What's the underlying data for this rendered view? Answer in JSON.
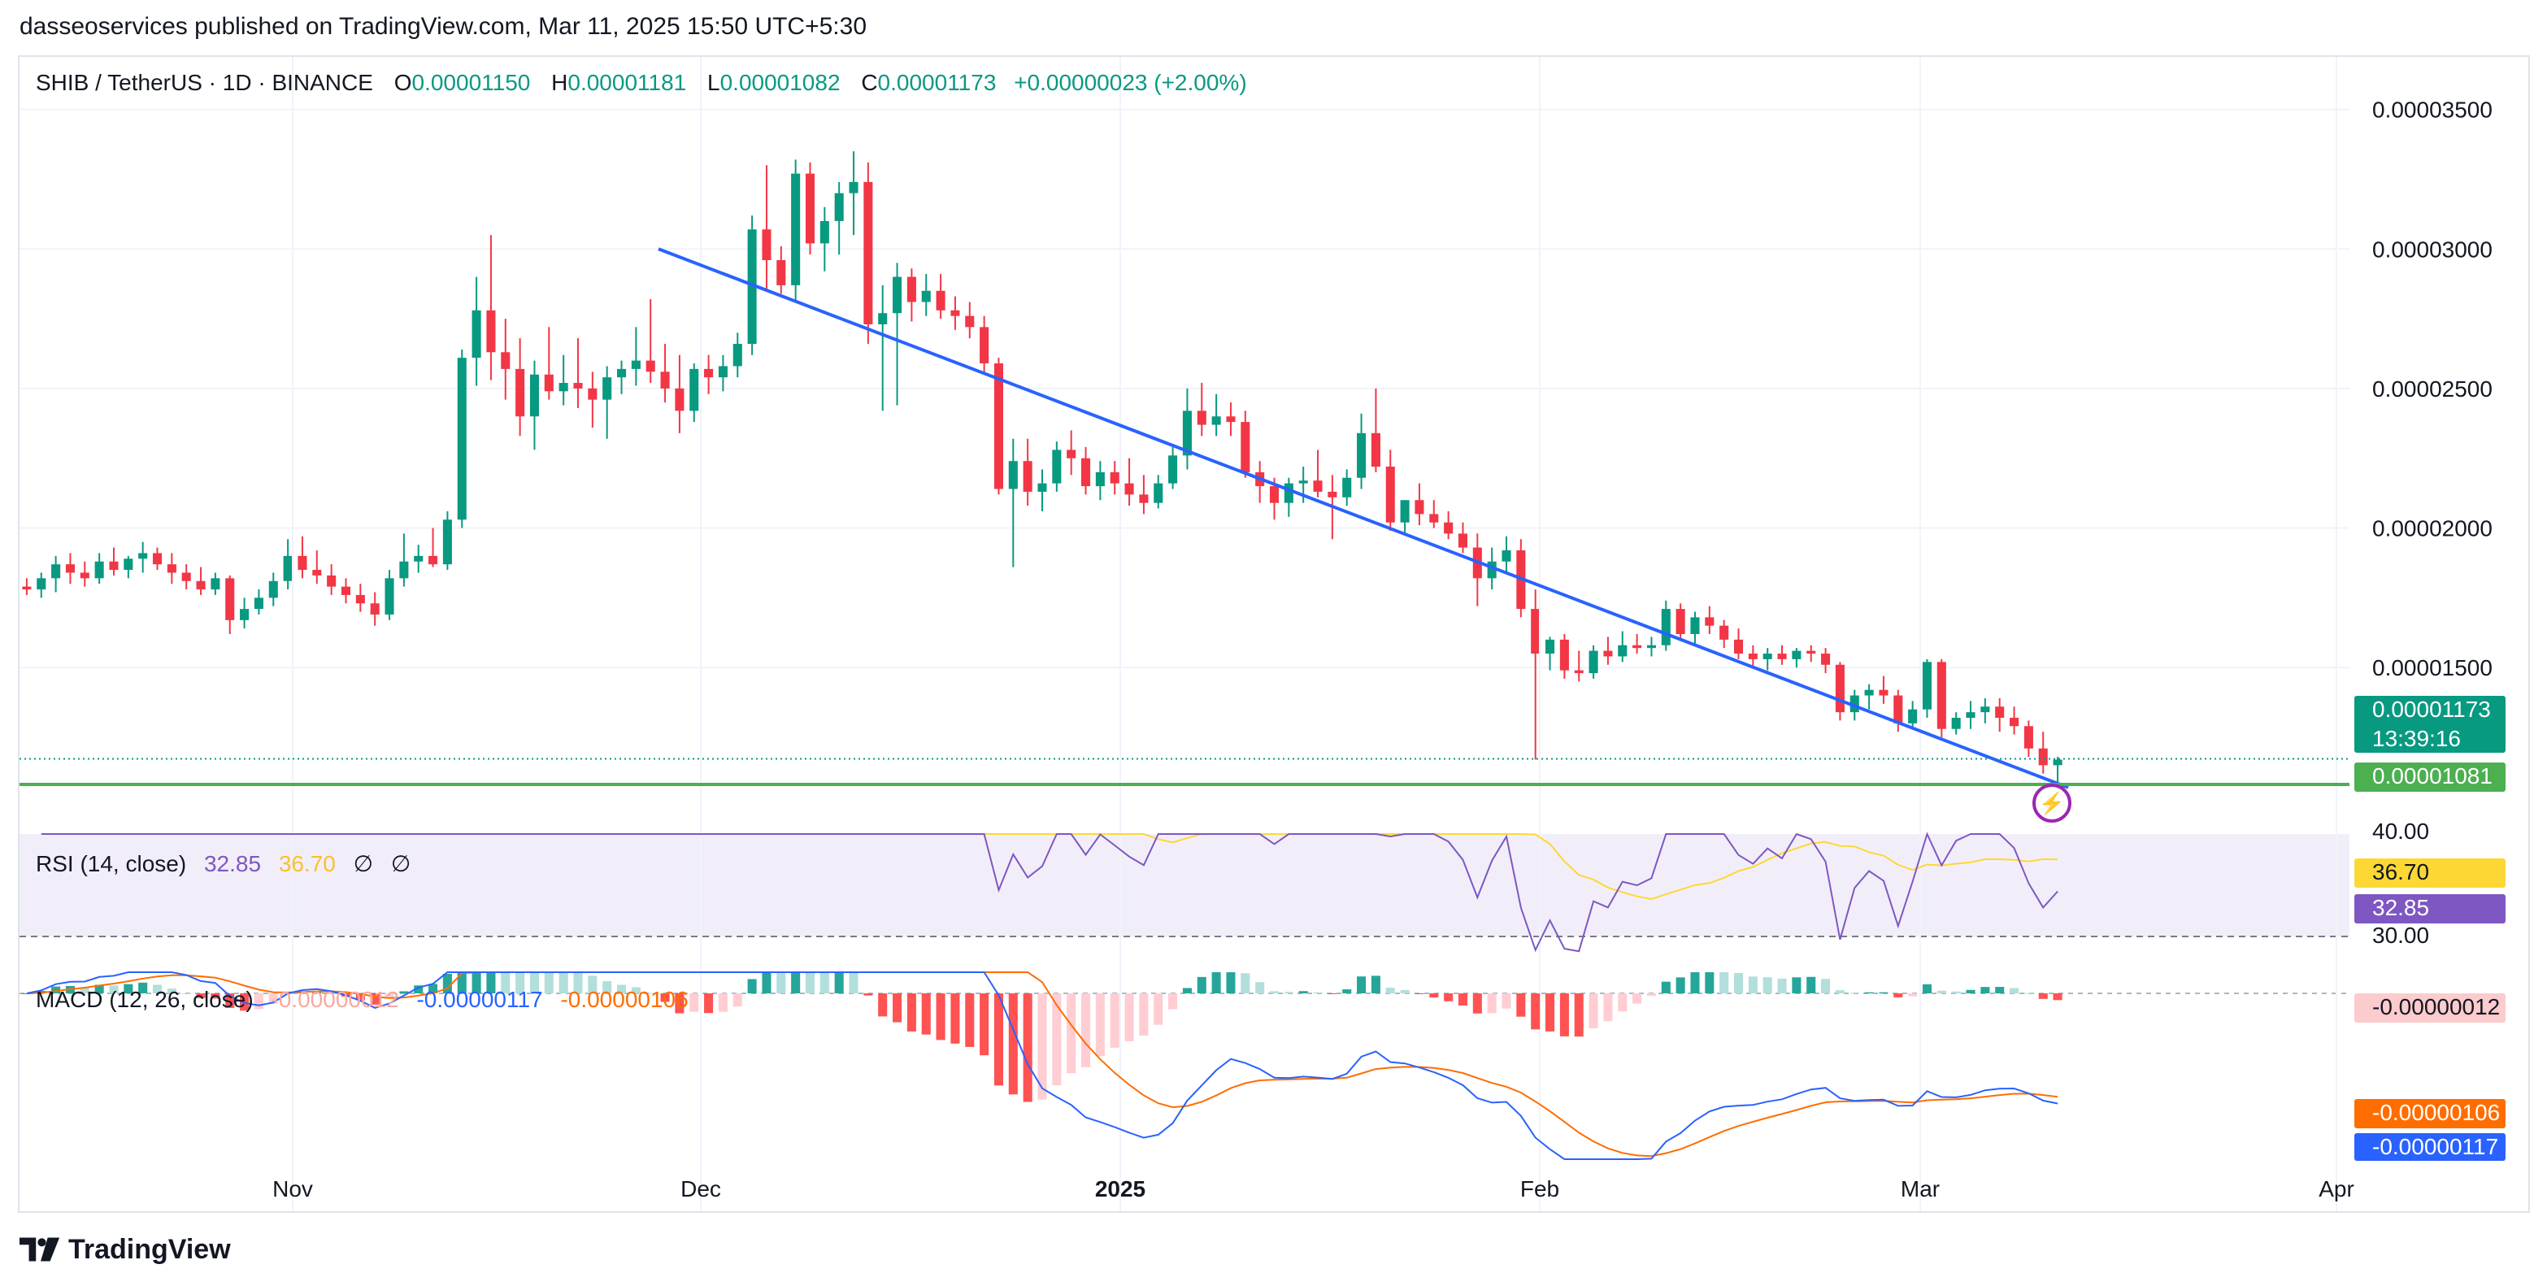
{
  "publisher": "dasseoservices published on TradingView.com, Mar 11, 2025 15:50 UTC+5:30",
  "legend": {
    "symbol": "SHIB / TetherUS · 1D · BINANCE",
    "o_label": "O",
    "o": "0.00001150",
    "h_label": "H",
    "h": "0.00001181",
    "l_label": "L",
    "l": "0.00001082",
    "c_label": "C",
    "c": "0.00001173",
    "change": "+0.00000023 (+2.00%)"
  },
  "rsi_legend": {
    "name": "RSI (14, close)",
    "v1": "32.85",
    "v2": "36.70",
    "v3": "∅",
    "v4": "∅"
  },
  "macd_legend": {
    "name": "MACD (12, 26, close)",
    "v1": "-0.00000012",
    "v2": "-0.00000117",
    "v3": "-0.00000106"
  },
  "price_badges": {
    "last": "0.00001173",
    "countdown": "13:39:16",
    "level": "0.00001081"
  },
  "rsi_badges": {
    "ma": "36.70",
    "rsi": "32.85"
  },
  "macd_badges": {
    "hist": "-0.00000012",
    "signal": "-0.00000106",
    "macd": "-0.00000117"
  },
  "logo": "TradingView",
  "colors": {
    "up": "#089981",
    "down": "#f23645",
    "trendline": "#2962ff",
    "support": "#4caf50",
    "rsi": "#7e57c2",
    "rsi_ma": "#fdd835",
    "macd": "#2962ff",
    "signal": "#ff6d00"
  },
  "chart_data": {
    "type": "candlestick",
    "symbol": "SHIB / TetherUS",
    "interval": "1D",
    "exchange": "BINANCE",
    "x_labels": [
      "Nov",
      "Dec",
      "2025",
      "Feb",
      "Mar",
      "Apr"
    ],
    "price_axis_ticks": [
      "0.00003500",
      "0.00003000",
      "0.00002500",
      "0.00002000",
      "0.00001500"
    ],
    "ylim": [
      9.5e-06,
      3.63e-05
    ],
    "trendline": {
      "from": {
        "date": "2024-11-28",
        "price": 3e-05
      },
      "to": {
        "date": "2025-03-11",
        "price": 1.07e-05
      }
    },
    "support_level": 1.081e-05,
    "last_close": 1.173e-05,
    "ohlc": [
      [
        1.79e-05,
        1.82e-05,
        1.76e-05,
        1.78e-05
      ],
      [
        1.78e-05,
        1.84e-05,
        1.75e-05,
        1.82e-05
      ],
      [
        1.82e-05,
        1.9e-05,
        1.77e-05,
        1.87e-05
      ],
      [
        1.87e-05,
        1.91e-05,
        1.8e-05,
        1.84e-05
      ],
      [
        1.84e-05,
        1.88e-05,
        1.79e-05,
        1.82e-05
      ],
      [
        1.82e-05,
        1.91e-05,
        1.8e-05,
        1.88e-05
      ],
      [
        1.88e-05,
        1.93e-05,
        1.83e-05,
        1.85e-05
      ],
      [
        1.85e-05,
        1.9e-05,
        1.82e-05,
        1.89e-05
      ],
      [
        1.89e-05,
        1.95e-05,
        1.84e-05,
        1.91e-05
      ],
      [
        1.91e-05,
        1.93e-05,
        1.85e-05,
        1.87e-05
      ],
      [
        1.87e-05,
        1.91e-05,
        1.8e-05,
        1.84e-05
      ],
      [
        1.84e-05,
        1.87e-05,
        1.78e-05,
        1.81e-05
      ],
      [
        1.81e-05,
        1.86e-05,
        1.76e-05,
        1.78e-05
      ],
      [
        1.78e-05,
        1.84e-05,
        1.76e-05,
        1.82e-05
      ],
      [
        1.82e-05,
        1.83e-05,
        1.62e-05,
        1.67e-05
      ],
      [
        1.67e-05,
        1.75e-05,
        1.64e-05,
        1.71e-05
      ],
      [
        1.71e-05,
        1.78e-05,
        1.69e-05,
        1.75e-05
      ],
      [
        1.75e-05,
        1.84e-05,
        1.72e-05,
        1.81e-05
      ],
      [
        1.81e-05,
        1.96e-05,
        1.78e-05,
        1.9e-05
      ],
      [
        1.9e-05,
        1.97e-05,
        1.82e-05,
        1.85e-05
      ],
      [
        1.85e-05,
        1.92e-05,
        1.8e-05,
        1.83e-05
      ],
      [
        1.83e-05,
        1.87e-05,
        1.76e-05,
        1.79e-05
      ],
      [
        1.79e-05,
        1.82e-05,
        1.73e-05,
        1.76e-05
      ],
      [
        1.76e-05,
        1.8e-05,
        1.7e-05,
        1.73e-05
      ],
      [
        1.73e-05,
        1.77e-05,
        1.65e-05,
        1.69e-05
      ],
      [
        1.69e-05,
        1.85e-05,
        1.67e-05,
        1.82e-05
      ],
      [
        1.82e-05,
        1.98e-05,
        1.79e-05,
        1.88e-05
      ],
      [
        1.88e-05,
        1.94e-05,
        1.84e-05,
        1.9e-05
      ],
      [
        1.9e-05,
        2e-05,
        1.86e-05,
        1.87e-05
      ],
      [
        1.87e-05,
        2.06e-05,
        1.85e-05,
        2.03e-05
      ],
      [
        2.03e-05,
        2.64e-05,
        2e-05,
        2.61e-05
      ],
      [
        2.61e-05,
        2.9e-05,
        2.51e-05,
        2.78e-05
      ],
      [
        2.78e-05,
        3.05e-05,
        2.53e-05,
        2.63e-05
      ],
      [
        2.63e-05,
        2.75e-05,
        2.46e-05,
        2.57e-05
      ],
      [
        2.57e-05,
        2.68e-05,
        2.33e-05,
        2.4e-05
      ],
      [
        2.4e-05,
        2.6e-05,
        2.28e-05,
        2.55e-05
      ],
      [
        2.55e-05,
        2.72e-05,
        2.46e-05,
        2.49e-05
      ],
      [
        2.49e-05,
        2.62e-05,
        2.44e-05,
        2.52e-05
      ],
      [
        2.52e-05,
        2.68e-05,
        2.43e-05,
        2.5e-05
      ],
      [
        2.5e-05,
        2.56e-05,
        2.36e-05,
        2.46e-05
      ],
      [
        2.46e-05,
        2.58e-05,
        2.32e-05,
        2.54e-05
      ],
      [
        2.54e-05,
        2.6e-05,
        2.48e-05,
        2.57e-05
      ],
      [
        2.57e-05,
        2.72e-05,
        2.51e-05,
        2.6e-05
      ],
      [
        2.6e-05,
        2.82e-05,
        2.52e-05,
        2.56e-05
      ],
      [
        2.56e-05,
        2.66e-05,
        2.45e-05,
        2.5e-05
      ],
      [
        2.5e-05,
        2.62e-05,
        2.34e-05,
        2.42e-05
      ],
      [
        2.42e-05,
        2.59e-05,
        2.38e-05,
        2.57e-05
      ],
      [
        2.57e-05,
        2.62e-05,
        2.48e-05,
        2.54e-05
      ],
      [
        2.54e-05,
        2.62e-05,
        2.49e-05,
        2.58e-05
      ],
      [
        2.58e-05,
        2.7e-05,
        2.54e-05,
        2.66e-05
      ],
      [
        2.66e-05,
        3.12e-05,
        2.62e-05,
        3.07e-05
      ],
      [
        3.07e-05,
        3.3e-05,
        2.85e-05,
        2.96e-05
      ],
      [
        2.96e-05,
        3.01e-05,
        2.84e-05,
        2.87e-05
      ],
      [
        2.87e-05,
        3.32e-05,
        2.81e-05,
        3.27e-05
      ],
      [
        3.27e-05,
        3.31e-05,
        2.98e-05,
        3.02e-05
      ],
      [
        3.02e-05,
        3.15e-05,
        2.92e-05,
        3.1e-05
      ],
      [
        3.1e-05,
        3.24e-05,
        2.98e-05,
        3.2e-05
      ],
      [
        3.2e-05,
        3.35e-05,
        3.05e-05,
        3.24e-05
      ],
      [
        3.24e-05,
        3.31e-05,
        2.66e-05,
        2.73e-05
      ],
      [
        2.73e-05,
        2.87e-05,
        2.42e-05,
        2.77e-05
      ],
      [
        2.77e-05,
        2.95e-05,
        2.44e-05,
        2.9e-05
      ],
      [
        2.9e-05,
        2.93e-05,
        2.74e-05,
        2.81e-05
      ],
      [
        2.81e-05,
        2.91e-05,
        2.76e-05,
        2.85e-05
      ],
      [
        2.85e-05,
        2.91e-05,
        2.75e-05,
        2.78e-05
      ],
      [
        2.78e-05,
        2.83e-05,
        2.71e-05,
        2.76e-05
      ],
      [
        2.76e-05,
        2.81e-05,
        2.68e-05,
        2.72e-05
      ],
      [
        2.72e-05,
        2.76e-05,
        2.55e-05,
        2.59e-05
      ],
      [
        2.59e-05,
        2.61e-05,
        2.12e-05,
        2.14e-05
      ],
      [
        2.14e-05,
        2.32e-05,
        1.86e-05,
        2.24e-05
      ],
      [
        2.24e-05,
        2.32e-05,
        2.08e-05,
        2.13e-05
      ],
      [
        2.13e-05,
        2.21e-05,
        2.06e-05,
        2.16e-05
      ],
      [
        2.16e-05,
        2.31e-05,
        2.13e-05,
        2.28e-05
      ],
      [
        2.28e-05,
        2.35e-05,
        2.19e-05,
        2.25e-05
      ],
      [
        2.25e-05,
        2.29e-05,
        2.12e-05,
        2.15e-05
      ],
      [
        2.15e-05,
        2.24e-05,
        2.1e-05,
        2.2e-05
      ],
      [
        2.2e-05,
        2.24e-05,
        2.12e-05,
        2.16e-05
      ],
      [
        2.16e-05,
        2.25e-05,
        2.08e-05,
        2.12e-05
      ],
      [
        2.12e-05,
        2.19e-05,
        2.05e-05,
        2.09e-05
      ],
      [
        2.09e-05,
        2.19e-05,
        2.07e-05,
        2.16e-05
      ],
      [
        2.16e-05,
        2.29e-05,
        2.14e-05,
        2.26e-05
      ],
      [
        2.26e-05,
        2.5e-05,
        2.21e-05,
        2.42e-05
      ],
      [
        2.42e-05,
        2.52e-05,
        2.33e-05,
        2.37e-05
      ],
      [
        2.37e-05,
        2.48e-05,
        2.33e-05,
        2.4e-05
      ],
      [
        2.4e-05,
        2.45e-05,
        2.33e-05,
        2.38e-05
      ],
      [
        2.38e-05,
        2.42e-05,
        2.18e-05,
        2.2e-05
      ],
      [
        2.2e-05,
        2.24e-05,
        2.09e-05,
        2.15e-05
      ],
      [
        2.15e-05,
        2.18e-05,
        2.03e-05,
        2.09e-05
      ],
      [
        2.09e-05,
        2.18e-05,
        2.04e-05,
        2.16e-05
      ],
      [
        2.16e-05,
        2.22e-05,
        2.09e-05,
        2.17e-05
      ],
      [
        2.17e-05,
        2.28e-05,
        2.11e-05,
        2.13e-05
      ],
      [
        2.13e-05,
        2.19e-05,
        1.96e-05,
        2.11e-05
      ],
      [
        2.11e-05,
        2.21e-05,
        2.08e-05,
        2.18e-05
      ],
      [
        2.18e-05,
        2.41e-05,
        2.14e-05,
        2.34e-05
      ],
      [
        2.34e-05,
        2.5e-05,
        2.2e-05,
        2.22e-05
      ],
      [
        2.22e-05,
        2.28e-05,
        1.99e-05,
        2.02e-05
      ],
      [
        2.02e-05,
        2.1e-05,
        1.98e-05,
        2.1e-05
      ],
      [
        2.1e-05,
        2.16e-05,
        2.01e-05,
        2.05e-05
      ],
      [
        2.05e-05,
        2.1e-05,
        2e-05,
        2.02e-05
      ],
      [
        2.02e-05,
        2.06e-05,
        1.96e-05,
        1.98e-05
      ],
      [
        1.98e-05,
        2.02e-05,
        1.91e-05,
        1.93e-05
      ],
      [
        1.93e-05,
        1.98e-05,
        1.72e-05,
        1.82e-05
      ],
      [
        1.82e-05,
        1.93e-05,
        1.78e-05,
        1.88e-05
      ],
      [
        1.88e-05,
        1.97e-05,
        1.84e-05,
        1.92e-05
      ],
      [
        1.92e-05,
        1.96e-05,
        1.68e-05,
        1.71e-05
      ],
      [
        1.71e-05,
        1.78e-05,
        1.17e-05,
        1.55e-05
      ],
      [
        1.55e-05,
        1.61e-05,
        1.49e-05,
        1.6e-05
      ],
      [
        1.6e-05,
        1.62e-05,
        1.46e-05,
        1.49e-05
      ],
      [
        1.49e-05,
        1.56e-05,
        1.45e-05,
        1.48e-05
      ],
      [
        1.48e-05,
        1.58e-05,
        1.46e-05,
        1.56e-05
      ],
      [
        1.56e-05,
        1.61e-05,
        1.51e-05,
        1.54e-05
      ],
      [
        1.54e-05,
        1.63e-05,
        1.52e-05,
        1.58e-05
      ],
      [
        1.58e-05,
        1.62e-05,
        1.55e-05,
        1.57e-05
      ],
      [
        1.57e-05,
        1.61e-05,
        1.54e-05,
        1.58e-05
      ],
      [
        1.58e-05,
        1.74e-05,
        1.56e-05,
        1.71e-05
      ],
      [
        1.71e-05,
        1.73e-05,
        1.6e-05,
        1.62e-05
      ],
      [
        1.62e-05,
        1.7e-05,
        1.58e-05,
        1.68e-05
      ],
      [
        1.68e-05,
        1.72e-05,
        1.62e-05,
        1.65e-05
      ],
      [
        1.65e-05,
        1.67e-05,
        1.57e-05,
        1.6e-05
      ],
      [
        1.6e-05,
        1.64e-05,
        1.53e-05,
        1.55e-05
      ],
      [
        1.55e-05,
        1.58e-05,
        1.5e-05,
        1.53e-05
      ],
      [
        1.53e-05,
        1.57e-05,
        1.49e-05,
        1.55e-05
      ],
      [
        1.55e-05,
        1.58e-05,
        1.51e-05,
        1.53e-05
      ],
      [
        1.53e-05,
        1.57e-05,
        1.5e-05,
        1.56e-05
      ],
      [
        1.56e-05,
        1.58e-05,
        1.52e-05,
        1.55e-05
      ],
      [
        1.55e-05,
        1.57e-05,
        1.48e-05,
        1.51e-05
      ],
      [
        1.51e-05,
        1.52e-05,
        1.31e-05,
        1.34e-05
      ],
      [
        1.34e-05,
        1.42e-05,
        1.31e-05,
        1.4e-05
      ],
      [
        1.4e-05,
        1.44e-05,
        1.35e-05,
        1.42e-05
      ],
      [
        1.42e-05,
        1.47e-05,
        1.37e-05,
        1.4e-05
      ],
      [
        1.4e-05,
        1.42e-05,
        1.27e-05,
        1.3e-05
      ],
      [
        1.3e-05,
        1.38e-05,
        1.28e-05,
        1.35e-05
      ],
      [
        1.35e-05,
        1.53e-05,
        1.32e-05,
        1.52e-05
      ],
      [
        1.52e-05,
        1.53e-05,
        1.25e-05,
        1.28e-05
      ],
      [
        1.28e-05,
        1.34e-05,
        1.26e-05,
        1.32e-05
      ],
      [
        1.32e-05,
        1.38e-05,
        1.28e-05,
        1.34e-05
      ],
      [
        1.34e-05,
        1.39e-05,
        1.3e-05,
        1.36e-05
      ],
      [
        1.36e-05,
        1.39e-05,
        1.27e-05,
        1.32e-05
      ],
      [
        1.32e-05,
        1.36e-05,
        1.26e-05,
        1.29e-05
      ],
      [
        1.29e-05,
        1.31e-05,
        1.18e-05,
        1.21e-05
      ],
      [
        1.21e-05,
        1.27e-05,
        1.12e-05,
        1.15e-05
      ],
      [
        1.15e-05,
        1.18e-05,
        1.08e-05,
        1.17e-05
      ]
    ]
  }
}
